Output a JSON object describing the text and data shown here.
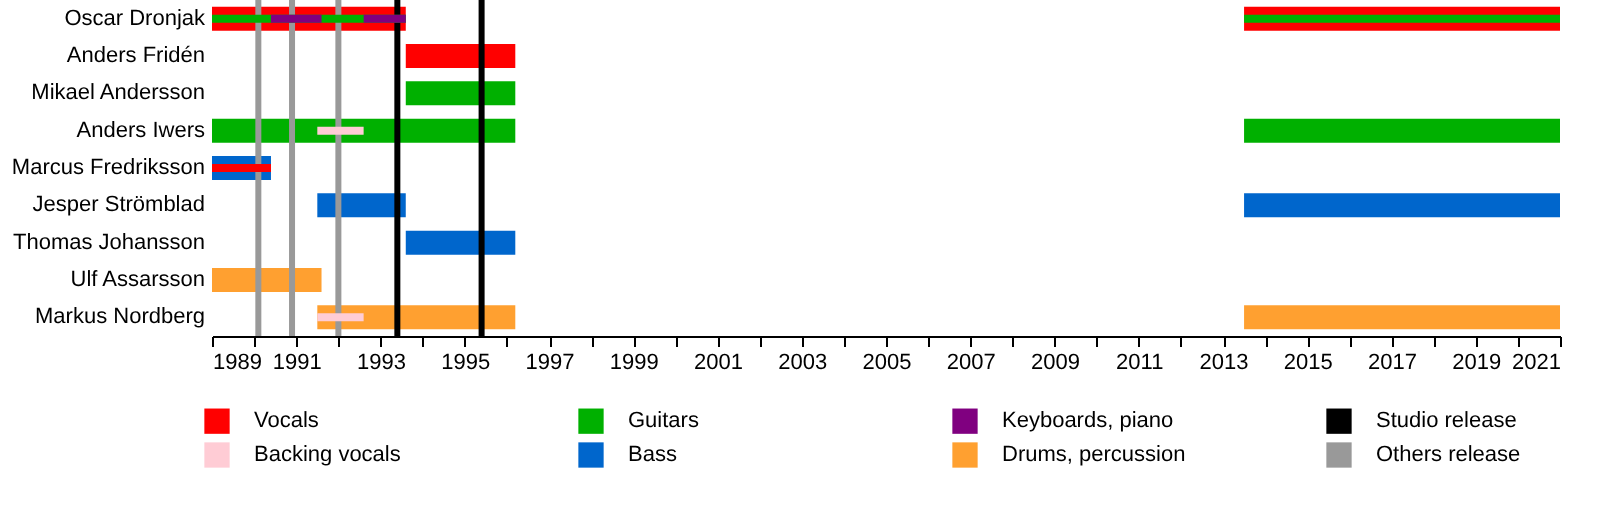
{
  "chart_data": {
    "type": "bar",
    "orientation": "horizontal",
    "categories": [
      "Oscar Dronjak",
      "Anders Fridén",
      "Mikael Andersson",
      "Anders Iwers",
      "Marcus Fredriksson",
      "Jesper Strömblad",
      "Thomas Johansson",
      "Ulf Assarsson",
      "Markus Nordberg"
    ],
    "series": [
      {
        "name": "Vocals",
        "color": "#ff0000",
        "values": [
          4.6,
          2.6,
          null,
          null,
          null,
          null,
          null,
          null,
          null
        ],
        "base": [
          1989,
          1993.6,
          null,
          null,
          null,
          null,
          null,
          null,
          null
        ]
      },
      {
        "name": "Backing vocals",
        "color": "#ffccd5",
        "values": [
          null,
          null,
          null,
          1.1,
          null,
          null,
          null,
          null,
          1.1
        ],
        "base": [
          null,
          null,
          null,
          1991.5,
          null,
          null,
          null,
          null,
          1991.5
        ]
      },
      {
        "name": "Guitars",
        "color": "#00b000",
        "values": [
          4.6,
          null,
          2.6,
          7.2,
          null,
          null,
          null,
          null,
          null
        ],
        "base": [
          1989,
          null,
          1993.6,
          1989,
          null,
          null,
          null,
          null,
          null
        ]
      },
      {
        "name": "Bass",
        "color": "#0066cc",
        "values": [
          null,
          null,
          null,
          null,
          1.4,
          2.1,
          2.6,
          null,
          null
        ],
        "base": [
          null,
          null,
          null,
          null,
          1989,
          1991.5,
          1993.6,
          null,
          null
        ]
      },
      {
        "name": "Keyboards, piano",
        "color": "#800080",
        "values": [
          1.2,
          null,
          null,
          null,
          null,
          null,
          null,
          null,
          null
        ],
        "base": [
          1990.4,
          null,
          null,
          null,
          null,
          null,
          null,
          null,
          null
        ]
      },
      {
        "name": "Drums, percussion",
        "color": "#ffa030",
        "values": [
          null,
          null,
          null,
          null,
          null,
          null,
          null,
          2.6,
          4.7
        ],
        "base": [
          null,
          null,
          null,
          null,
          null,
          null,
          null,
          1989,
          1991.5
        ]
      },
      {
        "color": "#ff0000",
        "values": [
          7.5,
          null,
          null,
          null,
          1.4,
          null,
          null,
          null,
          null
        ],
        "base": [
          2013.5,
          null,
          null,
          null,
          1989,
          null,
          null,
          null,
          null
        ]
      },
      {
        "color": "#00b000",
        "values": [
          7.5,
          null,
          null,
          7.5,
          null,
          null,
          null,
          null,
          null
        ],
        "base": [
          2013.5,
          null,
          null,
          2013.5,
          null,
          null,
          null,
          null,
          null
        ]
      },
      {
        "color": "#0066cc",
        "values": [
          null,
          null,
          null,
          null,
          null,
          7.5,
          null,
          null,
          null
        ],
        "base": [
          null,
          null,
          null,
          null,
          null,
          2013.5,
          null,
          null,
          null
        ]
      },
      {
        "color": "#ffa030",
        "values": [
          null,
          null,
          null,
          null,
          null,
          null,
          null,
          null,
          7.5
        ],
        "base": [
          null,
          null,
          null,
          null,
          null,
          null,
          null,
          null,
          2013.5
        ]
      },
      {
        "color": "#800080",
        "values": [
          1.0,
          null,
          null,
          null,
          null,
          null,
          null,
          null,
          null
        ],
        "base": [
          1992.6,
          null,
          null,
          null,
          null,
          null,
          null,
          null,
          null
        ]
      }
    ],
    "xlim": [
      1989,
      2021
    ],
    "xticks": [
      1989,
      {
        "value": 1990,
        "label": null
      },
      1991,
      {
        "value": 1992,
        "label": null
      },
      1993,
      {
        "value": 1994,
        "label": null
      },
      1995,
      {
        "value": 1996,
        "label": null
      },
      1997,
      {
        "value": 1998,
        "label": null
      },
      1999,
      {
        "value": 2000,
        "label": null
      },
      2001,
      {
        "value": 2002,
        "label": null
      },
      2003,
      {
        "value": 2004,
        "label": null
      },
      2005,
      {
        "value": 2006,
        "label": null
      },
      2007,
      {
        "value": 2008,
        "label": null
      },
      2009,
      {
        "value": 2010,
        "label": null
      },
      2011,
      {
        "value": 2012,
        "label": null
      },
      2013,
      {
        "value": 2014,
        "label": null
      },
      2015,
      {
        "value": 2016,
        "label": null
      },
      2017,
      {
        "value": 2018,
        "label": null
      },
      2019,
      {
        "value": 2020,
        "label": null
      },
      2021
    ],
    "ref_lines": [
      {
        "axis": "x",
        "value": 1993.4,
        "label": "Studio release",
        "color": "#000000"
      },
      {
        "axis": "x",
        "value": 1995.4,
        "color": "#000000"
      },
      {
        "axis": "x",
        "value": 1990.1,
        "label": "Others release",
        "color": "#999999"
      },
      {
        "axis": "x",
        "value": 1990.9,
        "color": "#999999"
      },
      {
        "axis": "x",
        "value": 1992,
        "color": "#999999"
      }
    ],
    "grid": false,
    "legend": "bottom"
  }
}
